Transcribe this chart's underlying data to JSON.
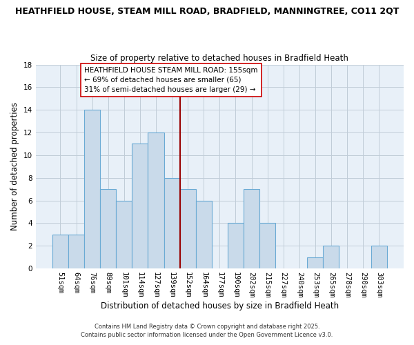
{
  "title_line1": "HEATHFIELD HOUSE, STEAM MILL ROAD, BRADFIELD, MANNINGTREE, CO11 2QT",
  "title_line2": "Size of property relative to detached houses in Bradfield Heath",
  "xlabel": "Distribution of detached houses by size in Bradfield Heath",
  "ylabel": "Number of detached properties",
  "categories": [
    "51sqm",
    "64sqm",
    "76sqm",
    "89sqm",
    "101sqm",
    "114sqm",
    "127sqm",
    "139sqm",
    "152sqm",
    "164sqm",
    "177sqm",
    "190sqm",
    "202sqm",
    "215sqm",
    "227sqm",
    "240sqm",
    "253sqm",
    "265sqm",
    "278sqm",
    "290sqm",
    "303sqm"
  ],
  "values": [
    3,
    3,
    14,
    7,
    6,
    11,
    12,
    8,
    7,
    6,
    0,
    4,
    7,
    4,
    0,
    0,
    1,
    2,
    0,
    0,
    2
  ],
  "bar_color": "#c9daea",
  "bar_edge_color": "#6aaad4",
  "vline_color": "#990000",
  "annotation_text": "HEATHFIELD HOUSE STEAM MILL ROAD: 155sqm\n← 69% of detached houses are smaller (65)\n31% of semi-detached houses are larger (29) →",
  "ylim": [
    0,
    18
  ],
  "yticks": [
    0,
    2,
    4,
    6,
    8,
    10,
    12,
    14,
    16,
    18
  ],
  "fig_bg_color": "#ffffff",
  "plot_bg_color": "#e8f0f8",
  "footer1": "Contains HM Land Registry data © Crown copyright and database right 2025.",
  "footer2": "Contains public sector information licensed under the Open Government Licence v3.0."
}
